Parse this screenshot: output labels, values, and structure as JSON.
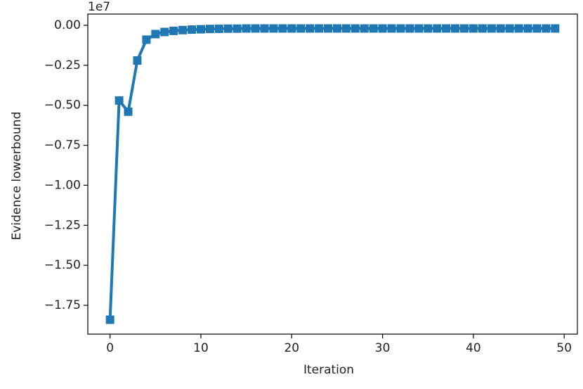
{
  "chart_data": {
    "type": "line",
    "x_label": "Iteration",
    "y_label": "Evidence lowerbound",
    "y_offset_label": "1e7",
    "x": [
      0,
      1,
      2,
      3,
      4,
      5,
      6,
      7,
      8,
      9,
      10,
      11,
      12,
      13,
      14,
      15,
      16,
      17,
      18,
      19,
      20,
      21,
      22,
      23,
      24,
      25,
      26,
      27,
      28,
      29,
      30,
      31,
      32,
      33,
      34,
      35,
      36,
      37,
      38,
      39,
      40,
      41,
      42,
      43,
      44,
      45,
      46,
      47,
      48,
      49
    ],
    "series": [
      {
        "color": "#1f77b4",
        "values": [
          -1.84,
          -0.47,
          -0.54,
          -0.22,
          -0.09,
          -0.055,
          -0.042,
          -0.035,
          -0.03,
          -0.027,
          -0.025,
          -0.023,
          -0.022,
          -0.021,
          -0.021,
          -0.02,
          -0.02,
          -0.02,
          -0.02,
          -0.02,
          -0.02,
          -0.02,
          -0.02,
          -0.02,
          -0.02,
          -0.02,
          -0.02,
          -0.02,
          -0.02,
          -0.02,
          -0.02,
          -0.02,
          -0.02,
          -0.02,
          -0.02,
          -0.02,
          -0.02,
          -0.02,
          -0.02,
          -0.02,
          -0.02,
          -0.02,
          -0.02,
          -0.02,
          -0.02,
          -0.02,
          -0.02,
          -0.02,
          -0.02,
          -0.02
        ]
      }
    ],
    "xlim": [
      -2.45,
      51.45
    ],
    "xticks": [
      0,
      10,
      20,
      30,
      40,
      50
    ],
    "ylim": [
      -1.93,
      0.07
    ],
    "yticks": [
      {
        "value": 0,
        "label": "0.00"
      },
      {
        "value": -0.25,
        "label": "−0.25"
      },
      {
        "value": -0.5,
        "label": "−0.50"
      },
      {
        "value": -0.75,
        "label": "−0.75"
      },
      {
        "value": -1,
        "label": "−1.00"
      },
      {
        "value": -1.25,
        "label": "−1.25"
      },
      {
        "value": -1.5,
        "label": "−1.50"
      },
      {
        "value": -1.75,
        "label": "−1.75"
      }
    ],
    "grid": false
  }
}
